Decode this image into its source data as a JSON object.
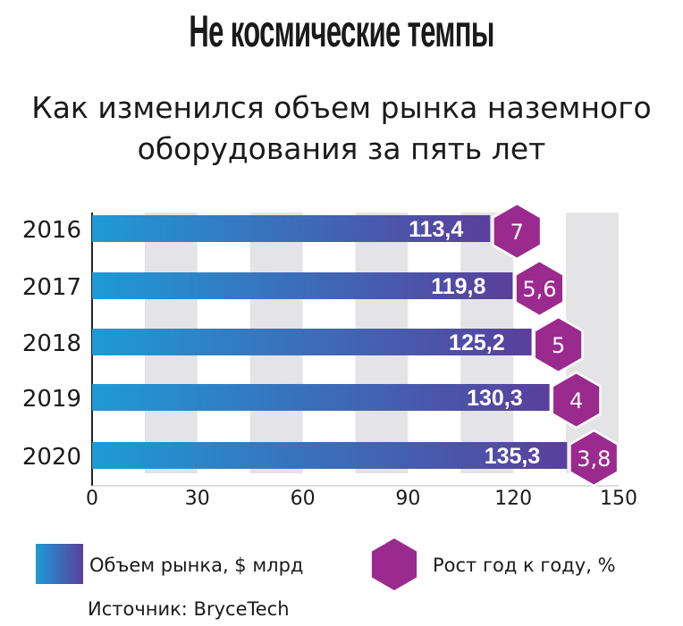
{
  "title": "Не космические темпы",
  "subtitle_lines": [
    "Как изменился объем рынка наземного",
    "оборудования за пять лет"
  ],
  "legend": {
    "bar_label": "Объем рынка, $ млрд",
    "hex_label": "Рост год к году, %"
  },
  "source": "Источник: BryceTech",
  "colors": {
    "bar_start": "#1e9ad6",
    "bar_end": "#5a3f9c",
    "hexagon": "#9b2a8e",
    "grid_band": "#e4e4e6"
  },
  "chart_data": {
    "type": "bar",
    "orientation": "horizontal",
    "categories": [
      "2016",
      "2017",
      "2018",
      "2019",
      "2020"
    ],
    "series": [
      {
        "name": "Объем рынка, $ млрд",
        "values": [
          113.4,
          119.8,
          125.2,
          130.3,
          135.3
        ],
        "labels": [
          "113,4",
          "119,8",
          "125,2",
          "130,3",
          "135,3"
        ]
      },
      {
        "name": "Рост год к году, %",
        "values": [
          7,
          5.6,
          5,
          4,
          3.8
        ],
        "labels": [
          "7",
          "5,6",
          "5",
          "4",
          "3,8"
        ]
      }
    ],
    "xticks": [
      "0",
      "30",
      "60",
      "90",
      "120",
      "150"
    ],
    "xlim": [
      0,
      150
    ],
    "grid": "alternating vertical bands",
    "legend_position": "bottom"
  }
}
